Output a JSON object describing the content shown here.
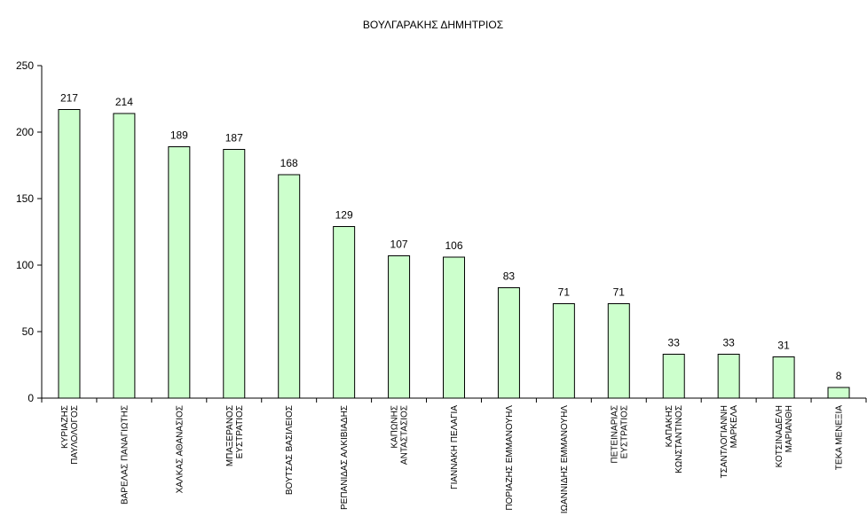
{
  "chart_data": {
    "type": "bar",
    "title": "ΒΟΥΛΓΑΡΑΚΗΣ ΔΗΜΗΤΡΙΟΣ",
    "xlabel": "",
    "ylabel": "",
    "ylim": [
      0,
      250
    ],
    "yticks": [
      "0",
      "50",
      "100",
      "150",
      "200",
      "250"
    ],
    "grid": false,
    "legend": "none",
    "bar_color": "#ccffcc",
    "bar_edge_color": "#000000",
    "categories": [
      [
        "ΚΥΡΙΑΖΗΣ",
        "ΠΑΥΛΟΛΟΓΟΣ"
      ],
      [
        "ΒΑΡΕΛΑΣ ΠΑΝΑΓΙΩΤΗΣ"
      ],
      [
        "ΧΑΛΚΑΣ ΑΘΑΝΑΣΙΟΣ"
      ],
      [
        "ΜΠΑΞΕΡΑΝΟΣ",
        "ΕΥΣΤΡΑΤΙΟΣ"
      ],
      [
        "ΒΟΥΤΣΑΣ ΒΑΣΙΛΕΙΟΣ"
      ],
      [
        "ΡΕΠΑΝΙΔΑΣ ΑΛΚΙΒΙΑΔΗΣ"
      ],
      [
        "ΚΑΠΩΝΗΣ",
        "ΑΝΤΑΣΤΑΣΙΟΣ"
      ],
      [
        "ΓΙΑΝΝΑΚΗ ΠΕΛΑΓΙΑ"
      ],
      [
        "ΠΟΡΙΑΖΗΣ ΕΜΜΑΝΟΥΗΛ"
      ],
      [
        "ΙΩΑΝΝΙΔΗΣ ΕΜΜΑΝΟΥΗΛ"
      ],
      [
        "ΠΕΤΕΙΝΑΡΙΑΣ",
        "ΕΥΣΤΡΑΤΙΟΣ"
      ],
      [
        "ΚΑΠΑΚΗΣ",
        "ΚΩΝΣΤΑΝΤΙΝΟΣ"
      ],
      [
        "ΤΣΑΝΤΛΟΓΙΑΝΝΗ",
        "ΜΑΡΚΕΛΑ"
      ],
      [
        "ΚΟΤΣΙΝΑΔΕΛΗ",
        "ΜΑΡΙΑΝΘΗ"
      ],
      [
        "ΤΕΚΑ ΜΕΝΕΞΙΑ"
      ]
    ],
    "values": [
      217,
      214,
      189,
      187,
      168,
      129,
      107,
      106,
      83,
      71,
      71,
      33,
      33,
      31,
      8
    ]
  }
}
